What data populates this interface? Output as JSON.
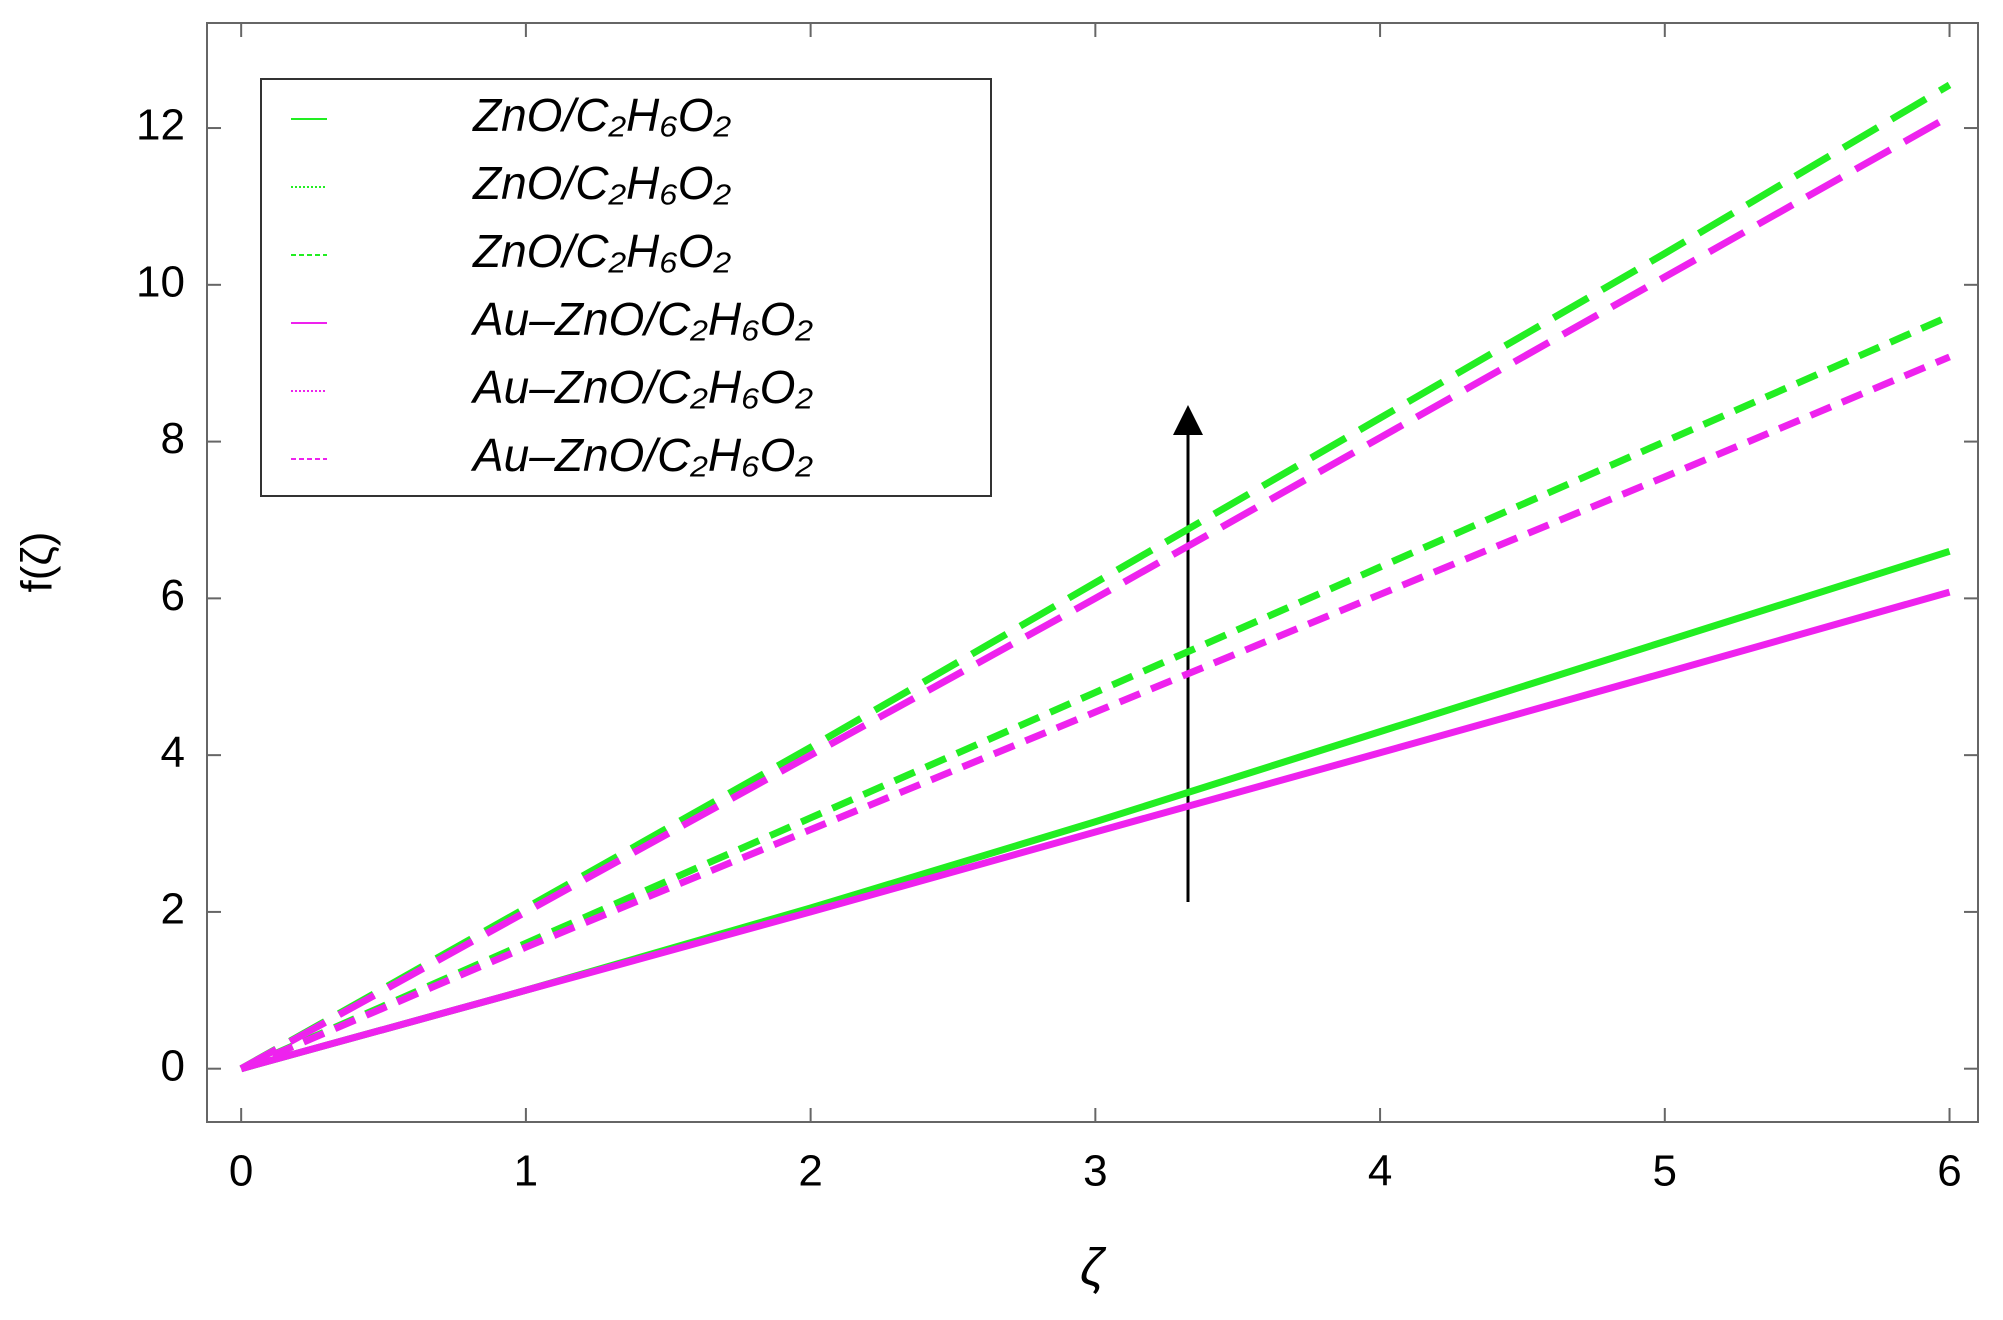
{
  "chart_data": {
    "type": "line",
    "x_label": "ζ",
    "y_label": "f(ζ)",
    "x": [
      0,
      1,
      2,
      3,
      4,
      5,
      6
    ],
    "series": [
      {
        "name": "ZnO/C₂H₆O₂",
        "color": "#22ee22",
        "dash": "solid",
        "values": [
          0,
          1,
          2.05,
          3.15,
          4.3,
          5.45,
          6.6
        ]
      },
      {
        "name": "ZnO/C₂H₆O₂",
        "color": "#22ee22",
        "dash": "dashed",
        "values": [
          0,
          1.6,
          3.2,
          4.8,
          6.4,
          8.0,
          9.6
        ]
      },
      {
        "name": "ZnO/C₂H₆O₂",
        "color": "#22ee22",
        "dash": "longdash",
        "values": [
          0,
          2.05,
          4.1,
          6.2,
          8.3,
          10.4,
          12.55
        ]
      },
      {
        "name": "Au–ZnO/C₂H₆O₂",
        "color": "#ee22ee",
        "dash": "solid",
        "values": [
          0,
          1,
          2,
          3.02,
          4.03,
          5.05,
          6.08
        ]
      },
      {
        "name": "Au–ZnO/C₂H₆O₂",
        "color": "#ee22ee",
        "dash": "dashed",
        "values": [
          0,
          1.55,
          3.05,
          4.55,
          6.05,
          7.55,
          9.08
        ]
      },
      {
        "name": "Au–ZnO/C₂H₆O₂",
        "color": "#ee22ee",
        "dash": "longdash",
        "values": [
          0,
          2.0,
          4.0,
          6.0,
          8.05,
          10.1,
          12.15
        ]
      }
    ],
    "xlim": [
      -0.12,
      6.1
    ],
    "ylim": [
      -0.68,
      13.34
    ],
    "xticks": [
      0,
      1,
      2,
      3,
      4,
      5,
      6
    ],
    "yticks": [
      0,
      2,
      4,
      6,
      8,
      10,
      12
    ],
    "legend": "upper-left",
    "grid": false
  }
}
